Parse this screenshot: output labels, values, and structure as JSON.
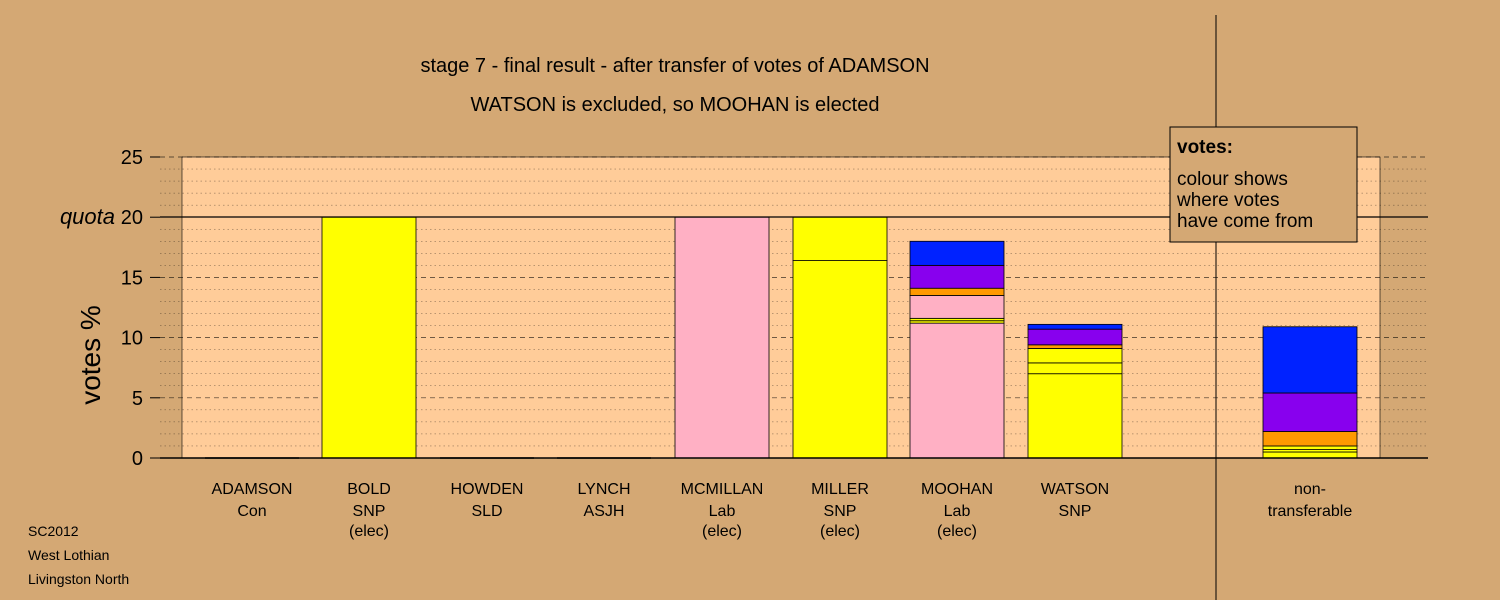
{
  "chart_data": {
    "type": "bar",
    "stacked": true,
    "title": "stage 7 - final result - after transfer of votes of ADAMSON",
    "subtitle": "WATSON is excluded, so MOOHAN is elected",
    "ylabel": "votes %",
    "ylim": [
      0,
      25
    ],
    "yticks": [
      "0",
      "5",
      "10",
      "15",
      "20",
      "25"
    ],
    "quota_label": "quota",
    "quota_value": 20,
    "grid": "dashed and dotted horizontal lines",
    "categories": [
      {
        "name": "ADAMSON",
        "party": "Con",
        "status": ""
      },
      {
        "name": "BOLD",
        "party": "SNP",
        "status": "(elec)"
      },
      {
        "name": "HOWDEN",
        "party": "SLD",
        "status": ""
      },
      {
        "name": "LYNCH",
        "party": "ASJH",
        "status": ""
      },
      {
        "name": "MCMILLAN",
        "party": "Lab",
        "status": "(elec)"
      },
      {
        "name": "MILLER",
        "party": "SNP",
        "status": "(elec)"
      },
      {
        "name": "MOOHAN",
        "party": "Lab",
        "status": "(elec)"
      },
      {
        "name": "WATSON",
        "party": "SNP",
        "status": ""
      },
      {
        "name": "non-",
        "party": "transferable",
        "status": ""
      }
    ],
    "stacks": [
      [],
      [
        {
          "value": 20.0,
          "color": "#FFFF00"
        }
      ],
      [],
      [],
      [
        {
          "value": 20.0,
          "color": "#FFB0C4"
        }
      ],
      [
        {
          "value": 16.4,
          "color": "#FFFF00"
        },
        {
          "value": 3.6,
          "color": "#FFFF00"
        }
      ],
      [
        {
          "value": 11.2,
          "color": "#FFB0C4"
        },
        {
          "value": 0.2,
          "color": "#FFFF00"
        },
        {
          "value": 0.2,
          "color": "#FFFF00"
        },
        {
          "value": 1.9,
          "color": "#FFB0C4"
        },
        {
          "value": 0.6,
          "color": "#FF9900"
        },
        {
          "value": 1.9,
          "color": "#8800EE"
        },
        {
          "value": 2.0,
          "color": "#0022FF"
        }
      ],
      [
        {
          "value": 7.0,
          "color": "#FFFF00"
        },
        {
          "value": 0.9,
          "color": "#FFFF00"
        },
        {
          "value": 1.2,
          "color": "#FFFF00"
        },
        {
          "value": 0.3,
          "color": "#FF9900"
        },
        {
          "value": 1.3,
          "color": "#8800EE"
        },
        {
          "value": 0.4,
          "color": "#0022FF"
        }
      ],
      [
        {
          "value": 0.5,
          "color": "#FFFF00"
        },
        {
          "value": 0.2,
          "color": "#FFFF00"
        },
        {
          "value": 0.3,
          "color": "#FFFF00"
        },
        {
          "value": 1.2,
          "color": "#FF9900"
        },
        {
          "value": 3.2,
          "color": "#8800EE"
        },
        {
          "value": 5.5,
          "color": "#0022FF"
        }
      ]
    ],
    "legend": {
      "heading": "votes:",
      "lines": [
        "colour shows",
        "where votes",
        "have come from"
      ],
      "placement": "top-right"
    }
  },
  "footer": {
    "election": "SC2012",
    "council": "West Lothian",
    "ward": "Livingston North"
  },
  "colors": {
    "background": "#D4A874",
    "plot_area": "#FFCC99",
    "snp": "#FFFF00",
    "lab": "#FFB0C4",
    "con": "#0022FF",
    "sld": "#FF9900",
    "asjh": "#8800EE"
  }
}
